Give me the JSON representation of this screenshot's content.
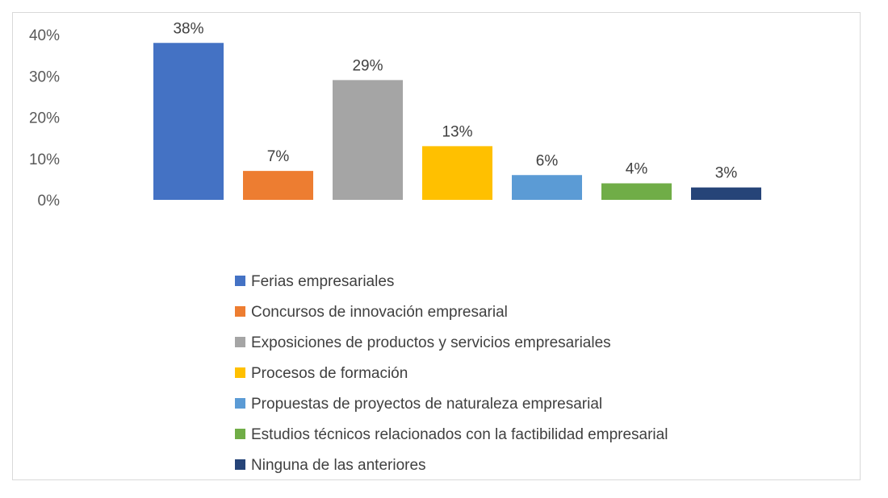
{
  "chart_data": {
    "type": "bar",
    "title": "",
    "xlabel": "",
    "ylabel": "",
    "ylim": [
      0,
      40
    ],
    "yticks": [
      "0%",
      "10%",
      "20%",
      "30%",
      "40%"
    ],
    "grid": false,
    "legend_position": "bottom",
    "categories": [
      "Ferias empresariales",
      "Concursos de innovación empresarial",
      "Exposiciones de productos y servicios empresariales",
      "Procesos de formación",
      "Propuestas de proyectos de naturaleza empresarial",
      "Estudios técnicos relacionados con la factibilidad empresarial",
      "Ninguna de las anteriores"
    ],
    "values": [
      38,
      7,
      29,
      13,
      6,
      4,
      3
    ],
    "labels": [
      "38%",
      "7%",
      "29%",
      "13%",
      "6%",
      "4%",
      "3%"
    ],
    "colors": [
      "#4472c4",
      "#ed7d31",
      "#a5a5a5",
      "#ffc000",
      "#5b9bd5",
      "#70ad47",
      "#264478"
    ]
  }
}
